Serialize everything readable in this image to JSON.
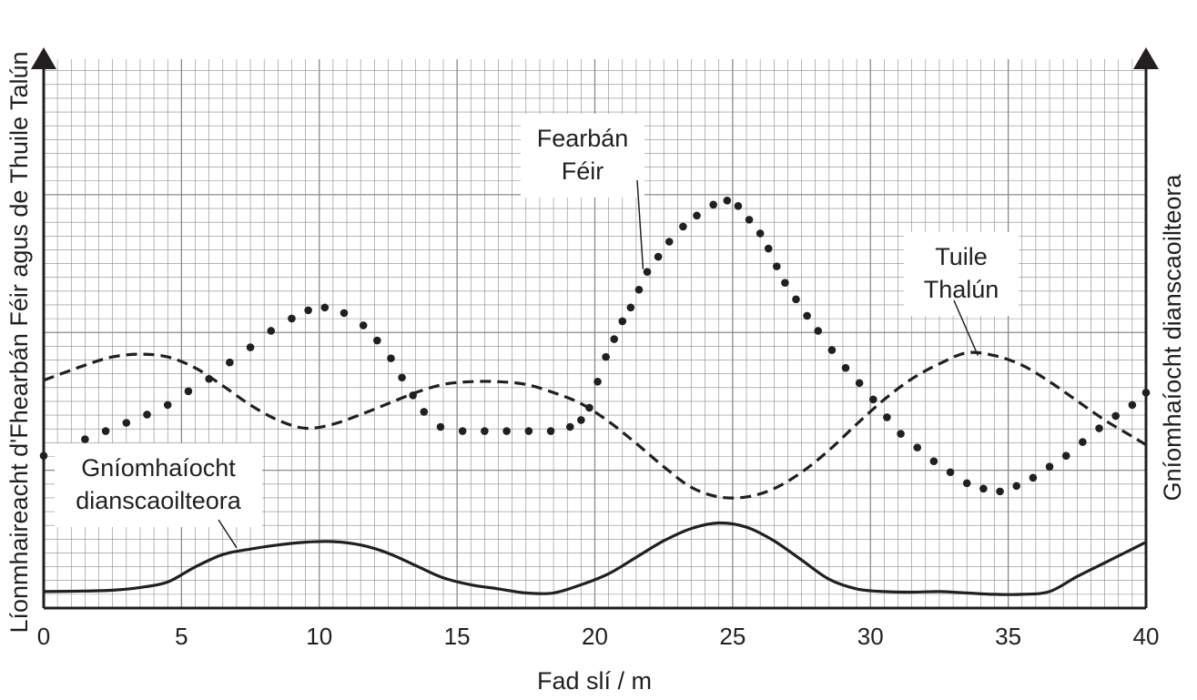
{
  "chart_data": {
    "type": "line",
    "title": "",
    "xlabel": "Fad slí / m",
    "ylabel_left": "Líonmhaireacht d'Fhearbán Féir agus de Thuile Talún",
    "ylabel_right": "Gníomhaíocht dianscaoilteora",
    "xlim": [
      0,
      40
    ],
    "ylim": [
      0,
      20
    ],
    "x_ticks": [
      "0",
      "5",
      "10",
      "15",
      "20",
      "25",
      "30",
      "35",
      "40"
    ],
    "grid": true,
    "series": [
      {
        "name": "Fearbán Féir",
        "style": "dotted",
        "x": [
          0,
          0.75,
          1.5,
          2.25,
          3,
          3.75,
          4.5,
          5.25,
          6,
          6.75,
          7.5,
          8.25,
          9,
          9.6,
          10.2,
          10.9,
          11.6,
          12.1,
          12.6,
          13,
          13.4,
          13.8,
          14.4,
          15.2,
          16,
          16.8,
          17.6,
          18.4,
          19.1,
          19.5,
          19.8,
          20.1,
          20.4,
          20.7,
          21,
          21.3,
          21.6,
          21.9,
          22.3,
          22.7,
          23.2,
          23.7,
          24.3,
          24.8,
          25.2,
          25.6,
          26,
          26.3,
          26.6,
          26.9,
          27.3,
          27.7,
          28.1,
          28.6,
          29.1,
          29.6,
          30.1,
          30.6,
          31.1,
          31.7,
          32.3,
          32.9,
          33.5,
          34.1,
          34.7,
          35.3,
          35.9,
          36.5,
          37.1,
          37.7,
          38.3,
          38.9,
          39.5,
          40
        ],
        "values": [
          5.55,
          5.8,
          6.15,
          6.45,
          6.75,
          7.05,
          7.4,
          7.9,
          8.35,
          8.95,
          9.5,
          10.1,
          10.55,
          10.85,
          10.95,
          10.75,
          10.3,
          9.75,
          9.1,
          8.4,
          7.75,
          7.15,
          6.6,
          6.45,
          6.45,
          6.45,
          6.45,
          6.45,
          6.6,
          6.85,
          7.3,
          8.25,
          9.15,
          9.8,
          10.45,
          10.95,
          11.6,
          12.25,
          12.8,
          13.35,
          13.9,
          14.3,
          14.7,
          14.85,
          14.65,
          14.15,
          13.65,
          13.1,
          12.45,
          11.85,
          11.25,
          10.65,
          10.1,
          9.4,
          8.75,
          8.2,
          7.6,
          6.95,
          6.35,
          5.85,
          5.35,
          4.95,
          4.55,
          4.35,
          4.25,
          4.45,
          4.75,
          5.15,
          5.55,
          6.05,
          6.55,
          7.0,
          7.4,
          7.85
        ]
      },
      {
        "name": "Tuile Thalún",
        "style": "dashed",
        "x": [
          0,
          1.5,
          2.5,
          3.5,
          4.5,
          5.5,
          6.5,
          7.5,
          8.5,
          9.5,
          10.5,
          11.5,
          12.5,
          13.5,
          14.5,
          15.5,
          16.5,
          17.5,
          18.5,
          19.5,
          20.5,
          21.5,
          22.5,
          23.5,
          24.5,
          25.5,
          26.5,
          27.5,
          28.5,
          29.5,
          30.5,
          31.5,
          32.5,
          33.5,
          34.5,
          35.5,
          36.5,
          37.5,
          38.5,
          39.5,
          40
        ],
        "values": [
          8.3,
          8.85,
          9.15,
          9.25,
          9.15,
          8.75,
          8.1,
          7.4,
          6.85,
          6.55,
          6.7,
          7.05,
          7.45,
          7.85,
          8.15,
          8.25,
          8.25,
          8.15,
          7.85,
          7.45,
          6.8,
          6.0,
          5.15,
          4.4,
          4.05,
          4.05,
          4.35,
          4.95,
          5.75,
          6.7,
          7.6,
          8.35,
          8.9,
          9.3,
          9.2,
          8.85,
          8.25,
          7.55,
          6.85,
          6.25,
          5.95
        ]
      },
      {
        "name": "Gníomhaíocht dianscaoilteora",
        "style": "solid",
        "x": [
          0,
          1.5,
          2.5,
          3.5,
          4.5,
          5.5,
          6.5,
          7.5,
          8.5,
          9.5,
          10.5,
          11.5,
          12.5,
          13.5,
          14.5,
          15.5,
          16.5,
          17.5,
          18.5,
          19.5,
          20.5,
          21.5,
          22.5,
          23.5,
          24.5,
          25.5,
          26.5,
          27.5,
          28.5,
          29.5,
          30.5,
          31.5,
          32.5,
          33.5,
          34.5,
          35.5,
          36.5,
          37.5,
          38.5,
          39.5,
          40
        ],
        "values": [
          0.6,
          0.62,
          0.65,
          0.75,
          0.95,
          1.5,
          1.95,
          2.15,
          2.3,
          2.4,
          2.42,
          2.3,
          2.0,
          1.55,
          1.1,
          0.85,
          0.7,
          0.55,
          0.55,
          0.85,
          1.25,
          1.85,
          2.45,
          2.9,
          3.1,
          2.95,
          2.45,
          1.75,
          1.05,
          0.7,
          0.6,
          0.58,
          0.6,
          0.55,
          0.5,
          0.5,
          0.6,
          1.15,
          1.65,
          2.15,
          2.4
        ]
      }
    ],
    "annotations": [
      {
        "lines": [
          "Fearbán",
          "Féir"
        ],
        "target_x": 21.75,
        "target_y": 12.35
      },
      {
        "lines": [
          "Tuile",
          "Thalún"
        ],
        "target_x": 33.9,
        "target_y": 9.2
      },
      {
        "lines": [
          "Gníomhaíocht",
          "dianscaoilteora"
        ],
        "target_x": 7.0,
        "target_y": 2.2
      }
    ]
  }
}
